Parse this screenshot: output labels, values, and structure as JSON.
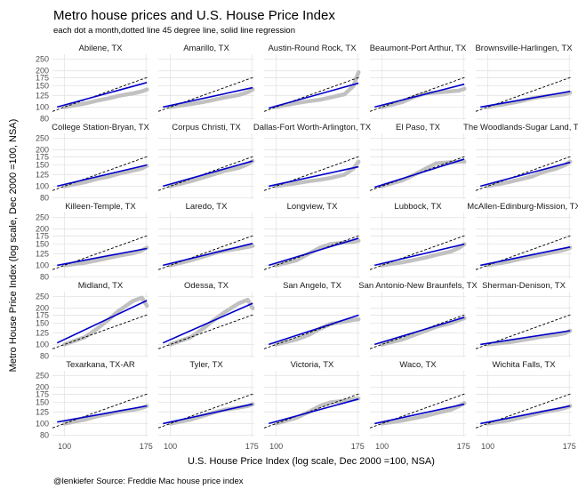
{
  "chart_data": {
    "type": "scatter",
    "title": "Metro house prices and U.S. House Price Index",
    "subtitle": "each dot a month,dotted line 45 degree line, solid line regression",
    "xlabel": "U.S. House Price Index (log scale, Dec 2000 =100, NSA)",
    "ylabel": "Metro House Price Index (log scale, Dec 2000 =100, NSA)",
    "caption": "@lenkiefer Source: Freddie Mac house price index",
    "x_scale": "log",
    "y_scale": "log",
    "xlim": [
      92,
      178
    ],
    "ylim": [
      78,
      275
    ],
    "x_ticks": [
      100,
      175
    ],
    "y_ticks": [
      80,
      100,
      125,
      150,
      175,
      200,
      250
    ],
    "grid": true,
    "colors": {
      "points": "#bebebe",
      "regression": "#0000cc",
      "reference": "#000000"
    },
    "panels": [
      {
        "name": "Abilene, TX",
        "a": 100,
        "b": 160,
        "pts": [
          [
            100,
            100
          ],
          [
            115,
            107
          ],
          [
            125,
            113
          ],
          [
            135,
            118
          ],
          [
            145,
            124
          ],
          [
            160,
            130
          ],
          [
            170,
            135
          ],
          [
            176,
            140
          ]
        ]
      },
      {
        "name": "Amarillo, TX",
        "a": 100,
        "b": 145,
        "pts": [
          [
            100,
            100
          ],
          [
            115,
            106
          ],
          [
            125,
            110
          ],
          [
            135,
            115
          ],
          [
            145,
            120
          ],
          [
            160,
            126
          ],
          [
            170,
            133
          ],
          [
            176,
            140
          ]
        ]
      },
      {
        "name": "Austin-Round Rock, TX",
        "a": 98,
        "b": 158,
        "pts": [
          [
            100,
            100
          ],
          [
            115,
            108
          ],
          [
            125,
            112
          ],
          [
            135,
            115
          ],
          [
            145,
            120
          ],
          [
            160,
            128
          ],
          [
            170,
            150
          ],
          [
            176,
            195
          ]
        ]
      },
      {
        "name": "Beaumont-Port Arthur, TX",
        "a": 100,
        "b": 155,
        "pts": [
          [
            100,
            100
          ],
          [
            115,
            110
          ],
          [
            125,
            122
          ],
          [
            135,
            130
          ],
          [
            145,
            132
          ],
          [
            160,
            135
          ],
          [
            170,
            137
          ],
          [
            176,
            142
          ]
        ]
      },
      {
        "name": "Brownsville-Harlingen, TX",
        "a": 100,
        "b": 135,
        "pts": [
          [
            100,
            100
          ],
          [
            115,
            107
          ],
          [
            125,
            112
          ],
          [
            135,
            118
          ],
          [
            145,
            122
          ],
          [
            160,
            125
          ],
          [
            170,
            128
          ],
          [
            176,
            132
          ]
        ]
      },
      {
        "name": "College Station-Bryan, TX",
        "a": 100,
        "b": 150,
        "pts": [
          [
            100,
            100
          ],
          [
            115,
            108
          ],
          [
            125,
            115
          ],
          [
            135,
            120
          ],
          [
            145,
            127
          ],
          [
            160,
            135
          ],
          [
            170,
            140
          ],
          [
            176,
            148
          ]
        ]
      },
      {
        "name": "Corpus Christi, TX",
        "a": 100,
        "b": 162,
        "pts": [
          [
            100,
            100
          ],
          [
            115,
            110
          ],
          [
            125,
            118
          ],
          [
            135,
            126
          ],
          [
            145,
            134
          ],
          [
            160,
            142
          ],
          [
            170,
            152
          ],
          [
            176,
            162
          ]
        ]
      },
      {
        "name": "Dallas-Fort Worth-Arlington, TX",
        "a": 100,
        "b": 145,
        "pts": [
          [
            100,
            100
          ],
          [
            115,
            106
          ],
          [
            125,
            110
          ],
          [
            135,
            113
          ],
          [
            145,
            117
          ],
          [
            160,
            125
          ],
          [
            170,
            140
          ],
          [
            176,
            160
          ]
        ]
      },
      {
        "name": "El Paso, TX",
        "a": 98,
        "b": 168,
        "pts": [
          [
            100,
            100
          ],
          [
            115,
            112
          ],
          [
            125,
            125
          ],
          [
            135,
            140
          ],
          [
            145,
            155
          ],
          [
            160,
            158
          ],
          [
            170,
            160
          ],
          [
            176,
            160
          ]
        ]
      },
      {
        "name": "The Woodlands-Sugar Land, TX",
        "a": 100,
        "b": 158,
        "pts": [
          [
            100,
            100
          ],
          [
            115,
            108
          ],
          [
            125,
            114
          ],
          [
            135,
            120
          ],
          [
            145,
            130
          ],
          [
            160,
            140
          ],
          [
            170,
            150
          ],
          [
            176,
            160
          ]
        ]
      },
      {
        "name": "Killeen-Temple, TX",
        "a": 100,
        "b": 138,
        "pts": [
          [
            100,
            100
          ],
          [
            115,
            105
          ],
          [
            125,
            110
          ],
          [
            135,
            115
          ],
          [
            145,
            120
          ],
          [
            160,
            126
          ],
          [
            170,
            133
          ],
          [
            176,
            140
          ]
        ]
      },
      {
        "name": "Laredo, TX",
        "a": 100,
        "b": 152,
        "pts": [
          [
            100,
            100
          ],
          [
            115,
            110
          ],
          [
            125,
            118
          ],
          [
            135,
            126
          ],
          [
            145,
            132
          ],
          [
            160,
            138
          ],
          [
            170,
            142
          ],
          [
            176,
            145
          ]
        ]
      },
      {
        "name": "Longview, TX",
        "a": 100,
        "b": 168,
        "pts": [
          [
            100,
            100
          ],
          [
            115,
            110
          ],
          [
            125,
            125
          ],
          [
            135,
            140
          ],
          [
            145,
            150
          ],
          [
            160,
            155
          ],
          [
            170,
            157
          ],
          [
            176,
            160
          ]
        ]
      },
      {
        "name": "Lubbock, TX",
        "a": 100,
        "b": 150,
        "pts": [
          [
            100,
            100
          ],
          [
            115,
            106
          ],
          [
            125,
            111
          ],
          [
            135,
            116
          ],
          [
            145,
            122
          ],
          [
            160,
            130
          ],
          [
            170,
            140
          ],
          [
            176,
            150
          ]
        ]
      },
      {
        "name": "McAllen-Edinburg-Mission, TX",
        "a": 100,
        "b": 142,
        "pts": [
          [
            100,
            100
          ],
          [
            115,
            107
          ],
          [
            125,
            113
          ],
          [
            135,
            118
          ],
          [
            145,
            123
          ],
          [
            160,
            130
          ],
          [
            170,
            135
          ],
          [
            176,
            140
          ]
        ]
      },
      {
        "name": "Midland, TX",
        "a": 103,
        "b": 232,
        "pts": [
          [
            100,
            100
          ],
          [
            115,
            115
          ],
          [
            125,
            135
          ],
          [
            135,
            160
          ],
          [
            145,
            190
          ],
          [
            160,
            230
          ],
          [
            170,
            245
          ],
          [
            176,
            210
          ]
        ]
      },
      {
        "name": "Odessa, TX",
        "a": 103,
        "b": 220,
        "pts": [
          [
            100,
            100
          ],
          [
            115,
            115
          ],
          [
            125,
            135
          ],
          [
            135,
            160
          ],
          [
            145,
            185
          ],
          [
            160,
            220
          ],
          [
            170,
            235
          ],
          [
            176,
            200
          ]
        ]
      },
      {
        "name": "San Angelo, TX",
        "a": 100,
        "b": 175,
        "pts": [
          [
            100,
            100
          ],
          [
            115,
            110
          ],
          [
            125,
            120
          ],
          [
            135,
            135
          ],
          [
            145,
            148
          ],
          [
            160,
            155
          ],
          [
            170,
            160
          ],
          [
            176,
            162
          ]
        ]
      },
      {
        "name": "San Antonio-New Braunfels, TX",
        "a": 100,
        "b": 168,
        "pts": [
          [
            100,
            100
          ],
          [
            115,
            110
          ],
          [
            125,
            120
          ],
          [
            135,
            130
          ],
          [
            145,
            140
          ],
          [
            160,
            150
          ],
          [
            170,
            160
          ],
          [
            176,
            165
          ]
        ]
      },
      {
        "name": "Sherman-Denison, TX",
        "a": 100,
        "b": 130,
        "pts": [
          [
            100,
            100
          ],
          [
            115,
            104
          ],
          [
            125,
            108
          ],
          [
            135,
            112
          ],
          [
            145,
            116
          ],
          [
            160,
            120
          ],
          [
            170,
            124
          ],
          [
            176,
            130
          ]
        ]
      },
      {
        "name": "Texarkana, TX-AR",
        "a": 103,
        "b": 140,
        "pts": [
          [
            100,
            100
          ],
          [
            115,
            108
          ],
          [
            125,
            115
          ],
          [
            135,
            120
          ],
          [
            145,
            125
          ],
          [
            160,
            130
          ],
          [
            170,
            135
          ],
          [
            176,
            140
          ]
        ]
      },
      {
        "name": "Tyler, TX",
        "a": 100,
        "b": 145,
        "pts": [
          [
            100,
            100
          ],
          [
            115,
            108
          ],
          [
            125,
            116
          ],
          [
            135,
            124
          ],
          [
            145,
            130
          ],
          [
            160,
            136
          ],
          [
            170,
            140
          ],
          [
            176,
            145
          ]
        ]
      },
      {
        "name": "Victoria, TX",
        "a": 100,
        "b": 160,
        "pts": [
          [
            100,
            100
          ],
          [
            115,
            112
          ],
          [
            125,
            125
          ],
          [
            135,
            140
          ],
          [
            145,
            150
          ],
          [
            160,
            155
          ],
          [
            170,
            160
          ],
          [
            176,
            162
          ]
        ]
      },
      {
        "name": "Waco, TX",
        "a": 100,
        "b": 145,
        "pts": [
          [
            100,
            100
          ],
          [
            115,
            106
          ],
          [
            125,
            111
          ],
          [
            135,
            116
          ],
          [
            145,
            122
          ],
          [
            160,
            130
          ],
          [
            170,
            140
          ],
          [
            176,
            148
          ]
        ]
      },
      {
        "name": "Wichita Falls, TX",
        "a": 100,
        "b": 140,
        "pts": [
          [
            100,
            100
          ],
          [
            115,
            106
          ],
          [
            125,
            112
          ],
          [
            135,
            118
          ],
          [
            145,
            124
          ],
          [
            160,
            130
          ],
          [
            170,
            135
          ],
          [
            176,
            140
          ]
        ]
      }
    ]
  }
}
